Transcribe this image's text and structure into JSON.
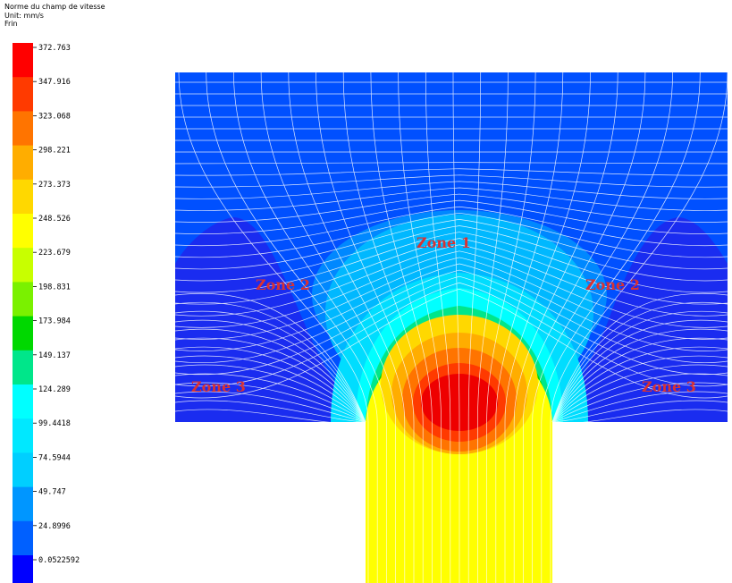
{
  "legend": {
    "title": "Norme du champ de vitesse",
    "unit": "Unit: mm/s",
    "subtitle": "Frin",
    "ticks": [
      "372.763",
      "347.916",
      "323.068",
      "298.221",
      "273.373",
      "248.526",
      "223.679",
      "198.831",
      "173.984",
      "149.137",
      "124.289",
      "99.4418",
      "74.5944",
      "49.747",
      "24.8996",
      "0.0522592"
    ],
    "band_colors": [
      "#ff0000",
      "#ff3a00",
      "#ff7400",
      "#ffad00",
      "#ffd800",
      "#ffff00",
      "#c8ff00",
      "#7af100",
      "#00d800",
      "#00e68a",
      "#00ffff",
      "#00e8ff",
      "#00cfff",
      "#0096ff",
      "#0060ff",
      "#0000ff"
    ]
  },
  "zones": [
    {
      "id": "zone-1",
      "label": "Zone 1"
    },
    {
      "id": "zone-2-left",
      "label": "Zone 2"
    },
    {
      "id": "zone-2-right",
      "label": "Zone 2"
    },
    {
      "id": "zone-3-left",
      "label": "Zone 3"
    },
    {
      "id": "zone-3-right",
      "label": "Zone 3"
    }
  ],
  "colors": {
    "background_field": "#0050ff",
    "corner_field": "#1a30f0",
    "contour_lines": "#ffffff"
  }
}
